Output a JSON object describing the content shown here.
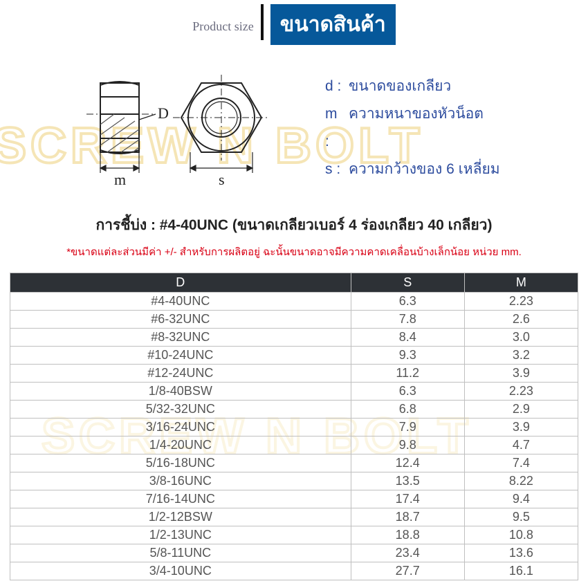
{
  "header": {
    "product_size_label": "Product size",
    "title_badge": "ขนาดสินค้า"
  },
  "watermark": {
    "text1": "SCREW N BOLT",
    "text2": "SCREW N BOLT"
  },
  "legend": {
    "d": {
      "key": "d :",
      "label": "ขนาดของเกลียว"
    },
    "m": {
      "key": "m :",
      "label": "ความหนาของหัวน็อต"
    },
    "s": {
      "key": "s :",
      "label": "ความกว้างของ 6 เหลี่ยม"
    }
  },
  "diagram_labels": {
    "D": "D",
    "m": "m",
    "s": "s"
  },
  "identify_line": "การชี้บ่ง : #4-40UNC (ขนาดเกลียวเบอร์ 4 ร่องเกลียว 40 เกลียว)",
  "note_line": "*ขนาดแต่ละส่วนมีค่า +/- สำหรับการผลิตอยู่ ฉะนั้นขนาดอาจมีความคาดเคลื่อนบ้างเล็กน้อย หน่วย mm.",
  "table": {
    "headers": {
      "D": "D",
      "S": "S",
      "M": "M"
    },
    "rows": [
      {
        "d": "#4-40UNC",
        "s": "6.3",
        "m": "2.23"
      },
      {
        "d": "#6-32UNC",
        "s": "7.8",
        "m": "2.6"
      },
      {
        "d": "#8-32UNC",
        "s": "8.4",
        "m": "3.0"
      },
      {
        "d": "#10-24UNC",
        "s": "9.3",
        "m": "3.2"
      },
      {
        "d": "#12-24UNC",
        "s": "11.2",
        "m": "3.9"
      },
      {
        "d": "1/8-40BSW",
        "s": "6.3",
        "m": "2.23"
      },
      {
        "d": "5/32-32UNC",
        "s": "6.8",
        "m": "2.9"
      },
      {
        "d": "3/16-24UNC",
        "s": "7.9",
        "m": "3.9"
      },
      {
        "d": "1/4-20UNC",
        "s": "9.8",
        "m": "4.7"
      },
      {
        "d": "5/16-18UNC",
        "s": "12.4",
        "m": "7.4"
      },
      {
        "d": "3/8-16UNC",
        "s": "13.5",
        "m": "8.22"
      },
      {
        "d": "7/16-14UNC",
        "s": "17.4",
        "m": "9.4"
      },
      {
        "d": "1/2-12BSW",
        "s": "18.7",
        "m": "9.5"
      },
      {
        "d": "1/2-13UNC",
        "s": "18.8",
        "m": "10.8"
      },
      {
        "d": "5/8-11UNC",
        "s": "23.4",
        "m": "13.6"
      },
      {
        "d": "3/4-10UNC",
        "s": "27.7",
        "m": "16.1"
      }
    ]
  },
  "colors": {
    "badge_bg": "#06589a",
    "badge_fg": "#ffffff",
    "legend_fg": "#2d4c9e",
    "note_fg": "#d90014",
    "th_bg": "#2d3136",
    "th_fg": "#ffffff",
    "td_border": "#bfbfbf",
    "psize_fg": "#6a6b7e",
    "watermark_stroke": "#f0d890"
  }
}
